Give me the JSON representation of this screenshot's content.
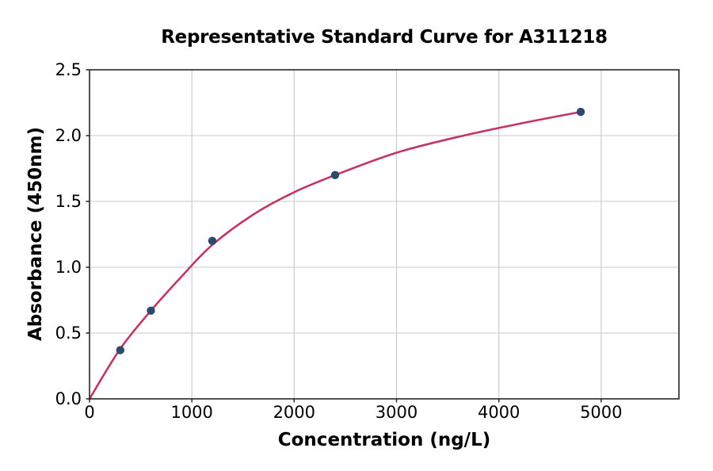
{
  "chart_data": {
    "type": "scatter",
    "title": "Representative Standard Curve for A311218",
    "xlabel": "Concentration (ng/L)",
    "ylabel": "Absorbance (450nm)",
    "xlim": [
      0,
      5760
    ],
    "ylim": [
      0,
      2.5
    ],
    "x_ticks": [
      0,
      1000,
      2000,
      3000,
      4000,
      5000
    ],
    "x_tick_labels": [
      "0",
      "1000",
      "2000",
      "3000",
      "4000",
      "5000"
    ],
    "y_ticks": [
      0,
      0.5,
      1.0,
      1.5,
      2.0,
      2.5
    ],
    "y_tick_labels": [
      "0.0",
      "0.5",
      "1.0",
      "1.5",
      "2.0",
      "2.5"
    ],
    "grid": true,
    "legend_position": "none",
    "series": [
      {
        "name": "fitted-curve",
        "type": "line",
        "x": [
          0,
          300,
          600,
          900,
          1200,
          1600,
          2000,
          2400,
          3000,
          3600,
          4200,
          4800
        ],
        "y": [
          0,
          0.38,
          0.67,
          0.93,
          1.17,
          1.4,
          1.57,
          1.7,
          1.87,
          1.99,
          2.09,
          2.18
        ]
      },
      {
        "name": "standard-points",
        "type": "scatter",
        "x": [
          300,
          600,
          1200,
          2400,
          4800
        ],
        "y": [
          0.37,
          0.67,
          1.2,
          1.7,
          2.18
        ]
      }
    ],
    "colors": {
      "curve": "#c23566",
      "points": "#2d4a6e",
      "grid": "#c8c8c8",
      "frame": "#262626",
      "text": "#000000",
      "background": "#ffffff"
    }
  }
}
